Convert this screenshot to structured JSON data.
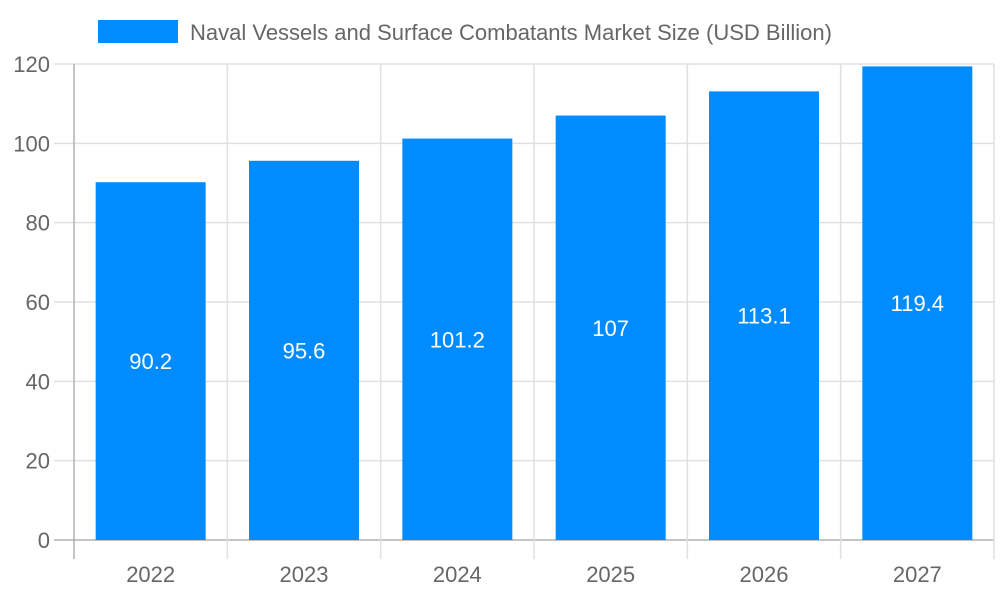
{
  "chart_data": {
    "type": "bar",
    "title": "",
    "xlabel": "",
    "ylabel": "",
    "categories": [
      "2022",
      "2023",
      "2024",
      "2025",
      "2026",
      "2027"
    ],
    "series": [
      {
        "name": "Naval Vessels and Surface Combatants Market Size (USD Billion)",
        "values": [
          90.2,
          95.6,
          101.2,
          107,
          113.1,
          119.4
        ]
      }
    ],
    "data_labels": [
      "90.2",
      "95.6",
      "101.2",
      "107",
      "113.1",
      "119.4"
    ],
    "ylim": [
      0,
      120
    ],
    "yticks": [
      "0",
      "20",
      "40",
      "60",
      "80",
      "100",
      "120"
    ],
    "grid": true,
    "legend_position": "top",
    "colors": {
      "bar": "#008cff",
      "text": "#666666",
      "grid": "#e0e0e0",
      "axis": "#b0b0b0",
      "data_label": "#ffffff"
    }
  }
}
